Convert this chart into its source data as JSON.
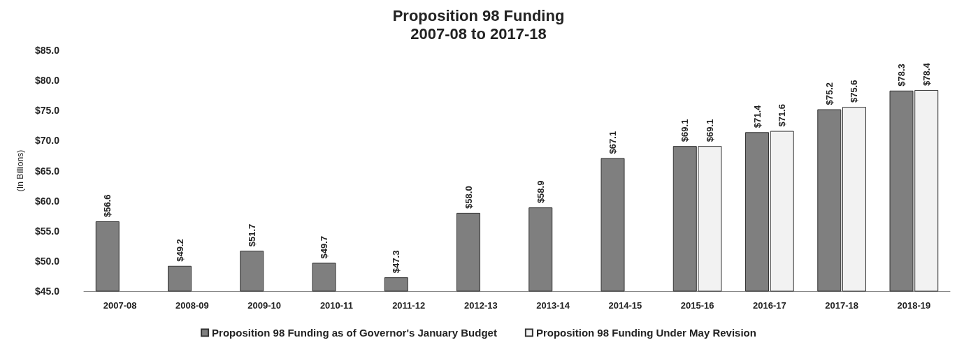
{
  "chart_data": {
    "type": "bar",
    "title": "Proposition 98 Funding",
    "subtitle": "2007-08 to 2017-18",
    "ylabel": "(In Billions)",
    "categories": [
      "2007-08",
      "2008-09",
      "2009-10",
      "2010-11",
      "2011-12",
      "2012-13",
      "2013-14",
      "2014-15",
      "2015-16",
      "2016-17",
      "2017-18",
      "2018-19"
    ],
    "series": [
      {
        "name": "Proposition 98 Funding as of Governor's January Budget",
        "color": "#7f7f7f",
        "values": [
          56.6,
          49.2,
          51.7,
          49.7,
          47.3,
          58.0,
          58.9,
          67.1,
          69.1,
          71.4,
          75.2,
          78.3
        ],
        "value_labels": [
          "$56.6",
          "$49.2",
          "$51.7",
          "$49.7",
          "$47.3",
          "$58.0",
          "$58.9",
          "$67.1",
          "$69.1",
          "$71.4",
          "$75.2",
          "$78.3"
        ]
      },
      {
        "name": "Proposition 98 Funding Under May Revision",
        "color": "#f2f2f2",
        "values": [
          null,
          null,
          null,
          null,
          null,
          null,
          null,
          null,
          69.1,
          71.6,
          75.6,
          78.4
        ],
        "value_labels": [
          null,
          null,
          null,
          null,
          null,
          null,
          null,
          null,
          "$69.1",
          "$71.6",
          "$75.6",
          "$78.4"
        ]
      }
    ],
    "ylim": [
      45,
      85
    ],
    "yticks": [
      {
        "value": 45,
        "label": "$45.0"
      },
      {
        "value": 50,
        "label": "$50.0"
      },
      {
        "value": 55,
        "label": "$55.0"
      },
      {
        "value": 60,
        "label": "$60.0"
      },
      {
        "value": 65,
        "label": "$65.0"
      },
      {
        "value": 70,
        "label": "$70.0"
      },
      {
        "value": 75,
        "label": "$75.0"
      },
      {
        "value": 80,
        "label": "$80.0"
      },
      {
        "value": 85,
        "label": "$85.0"
      }
    ],
    "grid": false,
    "legend": "bottom"
  }
}
